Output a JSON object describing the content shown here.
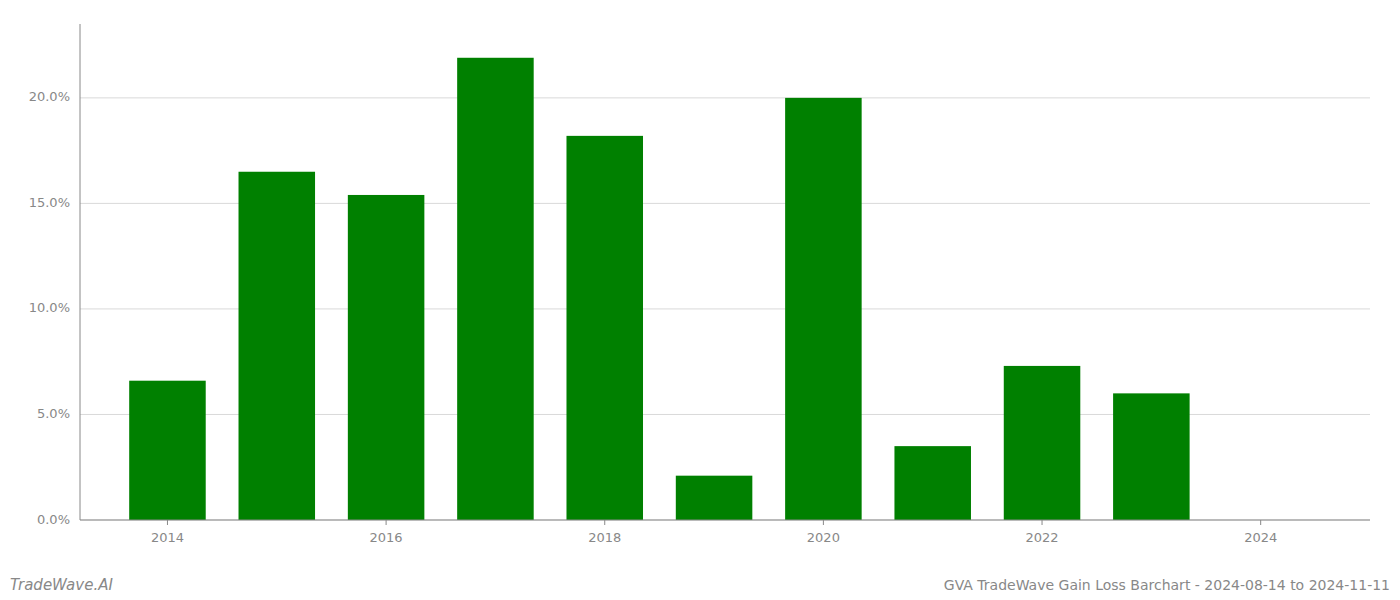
{
  "chart_data": {
    "type": "bar",
    "x": [
      2014,
      2015,
      2016,
      2017,
      2018,
      2019,
      2020,
      2021,
      2022,
      2023
    ],
    "values": [
      0.066,
      0.165,
      0.154,
      0.219,
      0.182,
      0.021,
      0.2,
      0.035,
      0.073,
      0.06
    ],
    "color": "#008000",
    "ylim": [
      0,
      0.235
    ],
    "yticks": [
      {
        "value": 0.0,
        "label": "0.0%"
      },
      {
        "value": 0.05,
        "label": "5.0%"
      },
      {
        "value": 0.1,
        "label": "10.0%"
      },
      {
        "value": 0.15,
        "label": "15.0%"
      },
      {
        "value": 0.2,
        "label": "20.0%"
      }
    ],
    "xlim": [
      2013.2,
      2025.0
    ],
    "xticks": [
      2014,
      2016,
      2018,
      2020,
      2022,
      2024
    ],
    "grid": true,
    "annotations": [
      "TradeWave.AI",
      "GVA TradeWave Gain Loss Barchart - 2024-08-14 to 2024-11-11"
    ]
  }
}
